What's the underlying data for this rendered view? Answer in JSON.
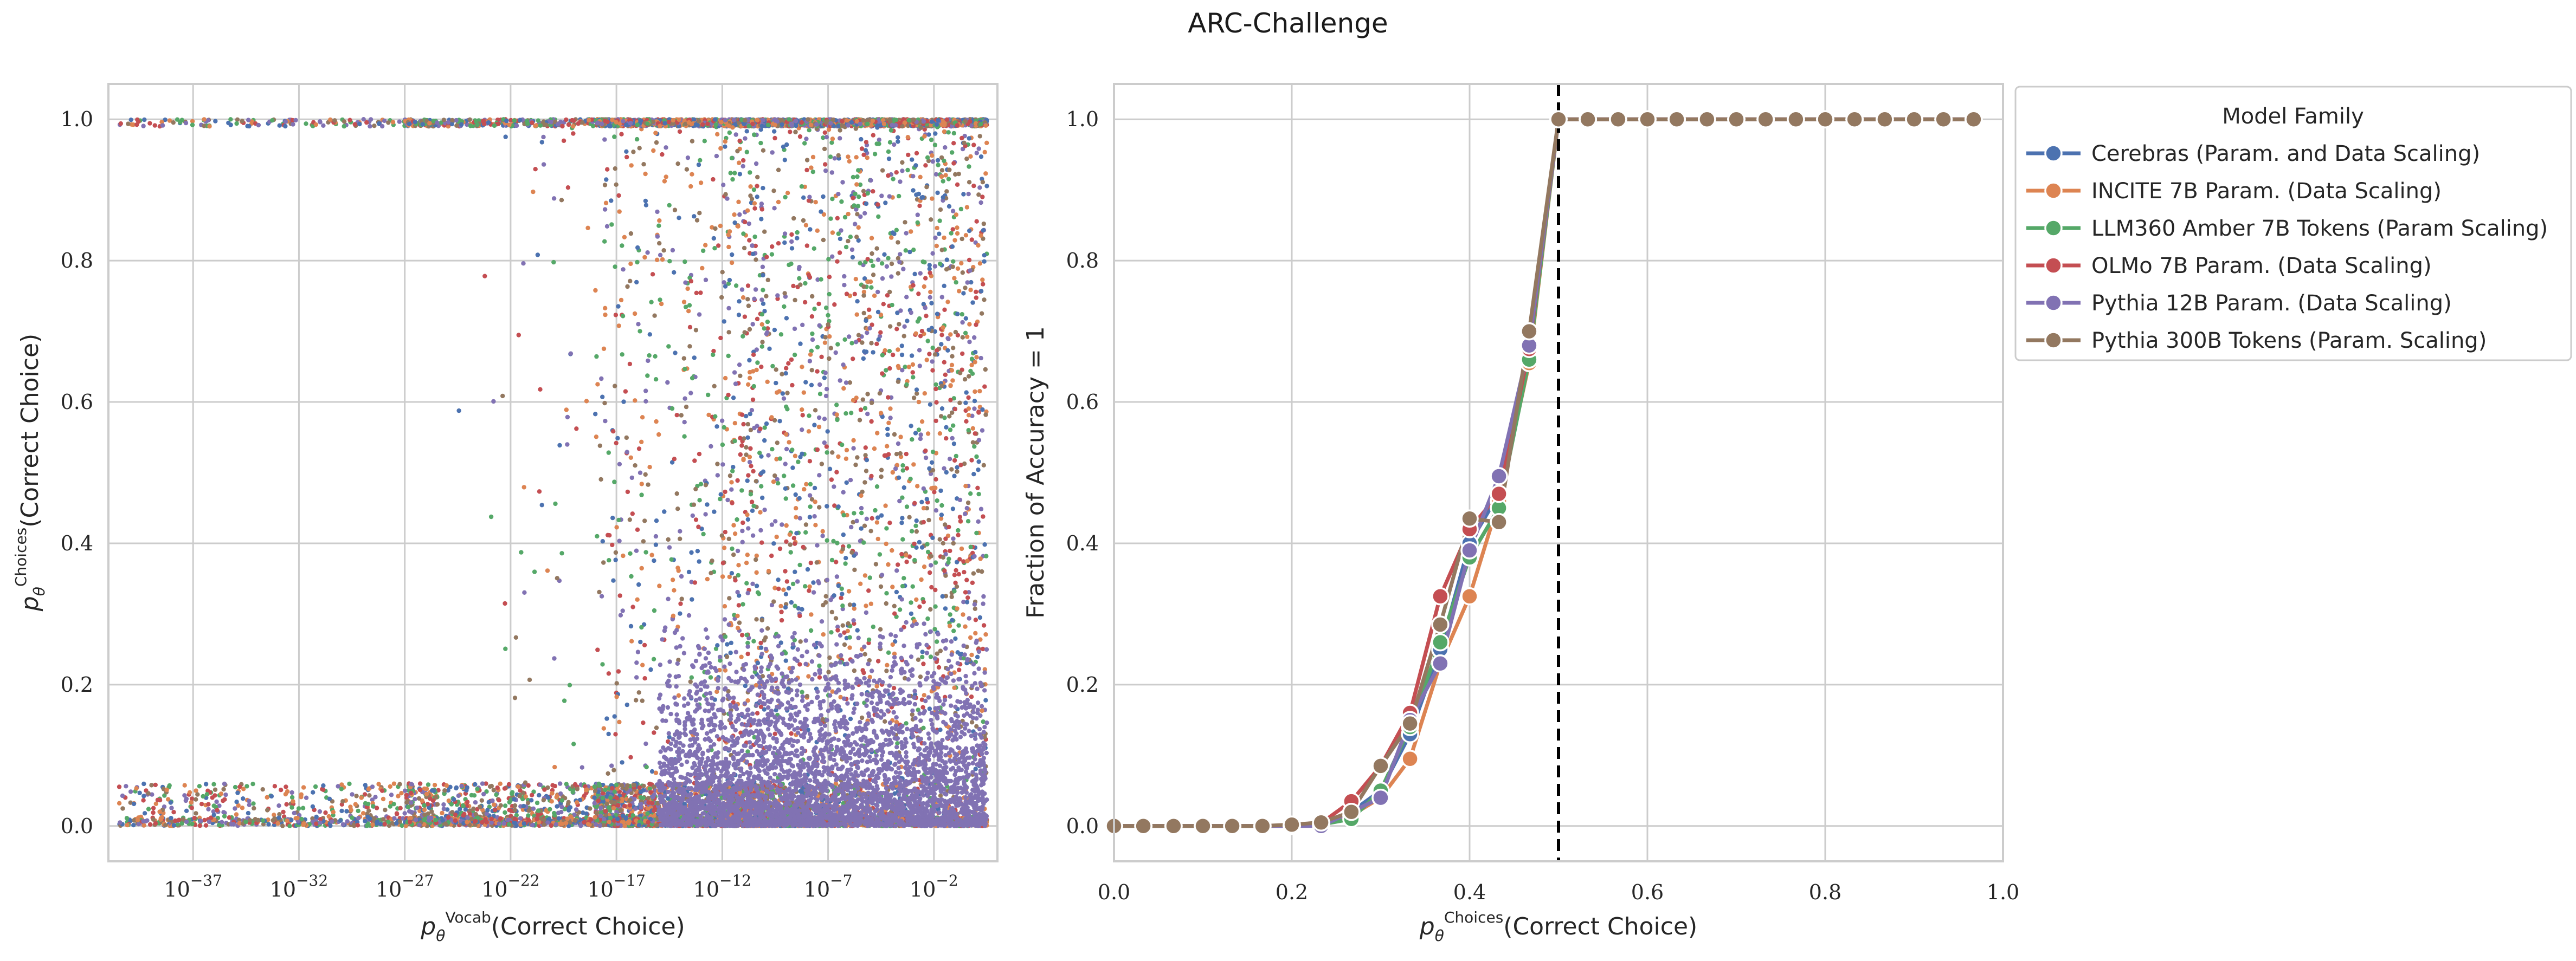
{
  "figure": {
    "title": "ARC-Challenge"
  },
  "colors": {
    "Cerebras": "#4c72b0",
    "INCITE": "#dd8452",
    "LLM360": "#55a868",
    "OLMo": "#c44e52",
    "Pythia12B": "#8172b3",
    "Pythia300B": "#937860",
    "grid": "#cccccc",
    "frame": "#cccccc",
    "threshold": "#000000"
  },
  "left_axes": {
    "xlabel_prefix": "p",
    "xlabel_sub": "θ",
    "xlabel_sup": "Vocab",
    "xlabel_text": "(Correct Choice)",
    "ylabel_prefix": "p",
    "ylabel_sub": "θ",
    "ylabel_sup": "Choices",
    "ylabel_text": "(Correct Choice)"
  },
  "right_axes": {
    "xlabel_prefix": "p",
    "xlabel_sub": "θ",
    "xlabel_sup": "Choices",
    "xlabel_text": "(Correct Choice)",
    "ylabel": "Fraction of Accuracy = 1"
  },
  "legend": {
    "title": "Model Family",
    "location": "outside upper right"
  },
  "chart_data": [
    {
      "type": "scatter",
      "xscale": "log",
      "xlim_exp": [
        -41,
        1
      ],
      "ylim": [
        -0.05,
        1.05
      ],
      "grid": true,
      "x_tick_exponents": [
        -37,
        -32,
        -27,
        -22,
        -17,
        -12,
        -7,
        -2
      ],
      "y_ticks": [
        0.0,
        0.2,
        0.4,
        0.6,
        0.8,
        1.0
      ],
      "y_tick_labels": [
        "0.0",
        "0.2",
        "0.4",
        "0.6",
        "0.8",
        "1.0"
      ],
      "series_colors": [
        "Cerebras",
        "INCITE",
        "LLM360",
        "OLMo",
        "Pythia12B",
        "Pythia300B"
      ],
      "note_points": "dense point cloud; approximately 12000 points concentrated near x=10^-10..10^0 and y near 0 and 1"
    },
    {
      "type": "line",
      "xlim": [
        0.0,
        1.0
      ],
      "ylim": [
        -0.05,
        1.05
      ],
      "grid": true,
      "x_ticks": [
        0.0,
        0.2,
        0.4,
        0.6,
        0.8,
        1.0
      ],
      "x_tick_labels": [
        "0.0",
        "0.2",
        "0.4",
        "0.6",
        "0.8",
        "1.0"
      ],
      "y_ticks": [
        0.0,
        0.2,
        0.4,
        0.6,
        0.8,
        1.0
      ],
      "y_tick_labels": [
        "0.0",
        "0.2",
        "0.4",
        "0.6",
        "0.8",
        "1.0"
      ],
      "vline_x": 0.5,
      "x": [
        0.0,
        0.033,
        0.067,
        0.1,
        0.133,
        0.167,
        0.2,
        0.233,
        0.267,
        0.3,
        0.333,
        0.367,
        0.4,
        0.433,
        0.467,
        0.5,
        0.533,
        0.567,
        0.6,
        0.633,
        0.667,
        0.7,
        0.733,
        0.767,
        0.8,
        0.833,
        0.867,
        0.9,
        0.933,
        0.967
      ],
      "series": [
        {
          "name": "Cerebras (Param. and Data Scaling)",
          "color_key": "Cerebras",
          "values": [
            0.0,
            0.0,
            0.0,
            0.0,
            0.0,
            0.0,
            0.0,
            0.002,
            0.02,
            0.05,
            0.13,
            0.25,
            0.4,
            0.47,
            0.67,
            1.0,
            1.0,
            1.0,
            1.0,
            1.0,
            1.0,
            1.0,
            1.0,
            1.0,
            1.0,
            1.0,
            1.0,
            1.0,
            1.0,
            1.0
          ]
        },
        {
          "name": "INCITE 7B Param. (Data Scaling)",
          "color_key": "INCITE",
          "values": [
            0.0,
            0.0,
            0.0,
            0.0,
            0.0,
            0.0,
            0.0,
            0.003,
            0.015,
            0.04,
            0.095,
            0.23,
            0.325,
            0.46,
            0.655,
            1.0,
            1.0,
            1.0,
            1.0,
            1.0,
            1.0,
            1.0,
            1.0,
            1.0,
            1.0,
            1.0,
            1.0,
            1.0,
            1.0,
            1.0
          ]
        },
        {
          "name": "LLM360 Amber 7B Tokens (Param Scaling)",
          "color_key": "LLM360",
          "values": [
            0.0,
            0.0,
            0.0,
            0.0,
            0.0,
            0.0,
            0.0,
            0.002,
            0.01,
            0.05,
            0.14,
            0.26,
            0.38,
            0.45,
            0.66,
            1.0,
            1.0,
            1.0,
            1.0,
            1.0,
            1.0,
            1.0,
            1.0,
            1.0,
            1.0,
            1.0,
            1.0,
            1.0,
            1.0,
            1.0
          ]
        },
        {
          "name": "OLMo 7B Param. (Data Scaling)",
          "color_key": "OLMo",
          "values": [
            0.0,
            0.0,
            0.0,
            0.0,
            0.0,
            0.0,
            0.0,
            0.004,
            0.035,
            0.085,
            0.16,
            0.325,
            0.42,
            0.47,
            0.675,
            1.0,
            1.0,
            1.0,
            1.0,
            1.0,
            1.0,
            1.0,
            1.0,
            1.0,
            1.0,
            1.0,
            1.0,
            1.0,
            1.0,
            1.0
          ]
        },
        {
          "name": "Pythia 12B Param. (Data Scaling)",
          "color_key": "Pythia12B",
          "values": [
            0.0,
            0.0,
            0.0,
            0.0,
            0.0,
            0.0,
            0.0,
            0.0,
            0.02,
            0.04,
            0.15,
            0.23,
            0.39,
            0.495,
            0.68,
            1.0,
            1.0,
            1.0,
            1.0,
            1.0,
            1.0,
            1.0,
            1.0,
            1.0,
            1.0,
            1.0,
            1.0,
            1.0,
            1.0,
            1.0
          ]
        },
        {
          "name": "Pythia 300B Tokens (Param. Scaling)",
          "color_key": "Pythia300B",
          "values": [
            0.0,
            0.0,
            0.0,
            0.0,
            0.0,
            0.0,
            0.002,
            0.005,
            0.02,
            0.085,
            0.145,
            0.285,
            0.435,
            0.43,
            0.7,
            1.0,
            1.0,
            1.0,
            1.0,
            1.0,
            1.0,
            1.0,
            1.0,
            1.0,
            1.0,
            1.0,
            1.0,
            1.0,
            1.0,
            1.0
          ]
        }
      ]
    }
  ]
}
